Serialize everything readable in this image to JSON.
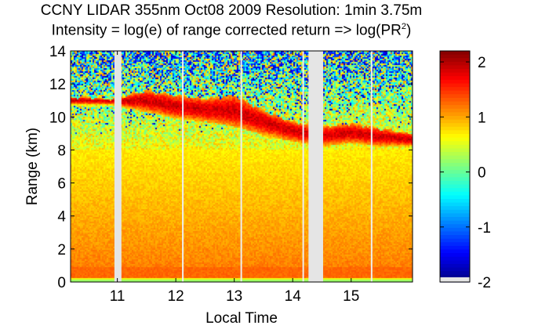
{
  "chart_data": {
    "type": "heatmap",
    "title_line1": "CCNY LIDAR 355nm Oct08 2009 Resolution: 1min 3.75m",
    "title_line2_prefix": "Intensity = log(e) of range corrected return => log(PR",
    "title_line2_sup": "2",
    "title_line2_suffix": ")",
    "xlabel": "Local Time",
    "ylabel": "Range (km)",
    "xlim": [
      10.2,
      16.05
    ],
    "ylim": [
      0,
      14
    ],
    "x_ticks": [
      11,
      12,
      13,
      14,
      15
    ],
    "y_ticks": [
      0,
      2,
      4,
      6,
      8,
      10,
      12,
      14
    ],
    "colorbar": {
      "range": [
        -2,
        2.2
      ],
      "ticks": [
        -2,
        -1,
        0,
        1,
        2
      ],
      "colormap": "jet"
    },
    "data_gaps_hours": [
      [
        10.95,
        11.07
      ],
      [
        14.27,
        14.52
      ]
    ],
    "thin_gaps_hours": [
      12.12,
      13.12,
      14.18,
      15.35
    ],
    "cloud_layer_top_km": [
      {
        "t": 10.4,
        "km": 11.2
      },
      {
        "t": 10.9,
        "km": 11.1
      },
      {
        "t": 11.5,
        "km": 11.6
      },
      {
        "t": 12.0,
        "km": 11.3
      },
      {
        "t": 12.5,
        "km": 11.1
      },
      {
        "t": 13.0,
        "km": 11.3
      },
      {
        "t": 13.5,
        "km": 10.4
      },
      {
        "t": 14.0,
        "km": 9.7
      },
      {
        "t": 14.5,
        "km": 9.4
      },
      {
        "t": 15.0,
        "km": 9.6
      },
      {
        "t": 15.5,
        "km": 9.3
      },
      {
        "t": 16.0,
        "km": 9.0
      }
    ],
    "cloud_layer_bottom_km": [
      {
        "t": 10.4,
        "km": 10.8
      },
      {
        "t": 10.9,
        "km": 10.8
      },
      {
        "t": 11.5,
        "km": 10.4
      },
      {
        "t": 12.0,
        "km": 10.0
      },
      {
        "t": 12.5,
        "km": 9.8
      },
      {
        "t": 13.0,
        "km": 9.5
      },
      {
        "t": 13.5,
        "km": 9.0
      },
      {
        "t": 14.0,
        "km": 8.6
      },
      {
        "t": 14.5,
        "km": 8.3
      },
      {
        "t": 15.0,
        "km": 8.5
      },
      {
        "t": 15.5,
        "km": 8.3
      },
      {
        "t": 16.0,
        "km": 8.3
      }
    ]
  }
}
